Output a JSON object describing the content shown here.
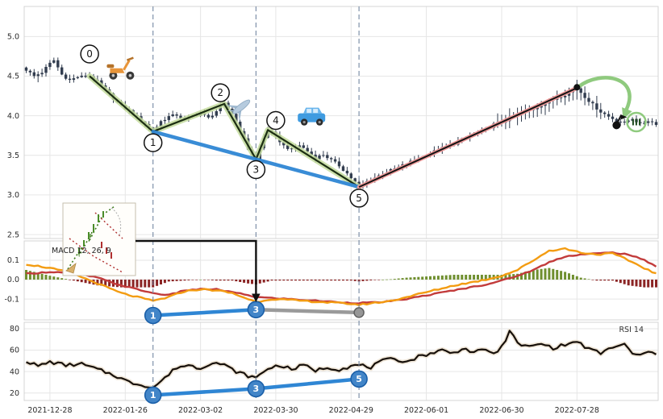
{
  "chart_data": {
    "type": "candlestick",
    "title": "",
    "axis": {
      "x_labels": [
        "2021-12-28",
        "2022-01-26",
        "2022-03-02",
        "2022-03-30",
        "2022-04-29",
        "2022-06-01",
        "2022-06-30",
        "2022-07-28"
      ],
      "x_label_days": [
        6,
        25,
        44,
        63,
        82,
        101,
        120,
        139
      ],
      "n_days": 160,
      "event_days": [
        32,
        58,
        84
      ]
    },
    "panels": {
      "price": {
        "ylim": [
          2.45,
          5.38
        ],
        "yticks": [
          {
            "v": 5.0,
            "label": "5.0"
          },
          {
            "v": 4.5,
            "label": "4.5"
          },
          {
            "v": 4.0,
            "label": "4.0"
          },
          {
            "v": 3.5,
            "label": "3.5"
          },
          {
            "v": 3.0,
            "label": "3.0"
          },
          {
            "v": 2.5,
            "label": "2.5"
          }
        ],
        "close_anchors": [
          [
            0,
            4.58
          ],
          [
            2,
            4.5
          ],
          [
            4,
            4.55
          ],
          [
            6,
            4.66
          ],
          [
            7,
            4.7
          ],
          [
            9,
            4.52
          ],
          [
            11,
            4.45
          ],
          [
            13,
            4.49
          ],
          [
            16,
            4.5
          ],
          [
            18,
            4.43
          ],
          [
            20,
            4.32
          ],
          [
            22,
            4.22
          ],
          [
            24,
            4.12
          ],
          [
            26,
            4.06
          ],
          [
            28,
            3.98
          ],
          [
            30,
            3.9
          ],
          [
            32,
            3.8
          ],
          [
            34,
            3.93
          ],
          [
            36,
            3.99
          ],
          [
            38,
            4.01
          ],
          [
            40,
            3.95
          ],
          [
            42,
            4.0
          ],
          [
            44,
            4.03
          ],
          [
            46,
            3.97
          ],
          [
            48,
            4.06
          ],
          [
            50,
            4.15
          ],
          [
            52,
            4.03
          ],
          [
            54,
            3.82
          ],
          [
            56,
            3.58
          ],
          [
            58,
            3.45
          ],
          [
            60,
            3.72
          ],
          [
            61,
            3.82
          ],
          [
            63,
            3.74
          ],
          [
            65,
            3.62
          ],
          [
            67,
            3.57
          ],
          [
            69,
            3.63
          ],
          [
            71,
            3.55
          ],
          [
            73,
            3.47
          ],
          [
            75,
            3.51
          ],
          [
            77,
            3.44
          ],
          [
            79,
            3.37
          ],
          [
            81,
            3.27
          ],
          [
            83,
            3.16
          ],
          [
            84,
            3.1
          ],
          [
            86,
            3.17
          ],
          [
            88,
            3.22
          ],
          [
            90,
            3.27
          ],
          [
            92,
            3.31
          ],
          [
            94,
            3.35
          ],
          [
            96,
            3.4
          ],
          [
            98,
            3.44
          ],
          [
            100,
            3.48
          ],
          [
            102,
            3.53
          ],
          [
            104,
            3.57
          ],
          [
            106,
            3.61
          ],
          [
            108,
            3.65
          ],
          [
            110,
            3.7
          ],
          [
            112,
            3.74
          ],
          [
            114,
            3.79
          ],
          [
            116,
            3.83
          ],
          [
            118,
            3.89
          ],
          [
            120,
            3.92
          ],
          [
            122,
            3.97
          ],
          [
            124,
            4.01
          ],
          [
            126,
            4.05
          ],
          [
            128,
            4.09
          ],
          [
            130,
            4.14
          ],
          [
            132,
            4.18
          ],
          [
            134,
            4.23
          ],
          [
            136,
            4.27
          ],
          [
            138,
            4.32
          ],
          [
            139,
            4.35
          ],
          [
            141,
            4.24
          ],
          [
            143,
            4.14
          ],
          [
            145,
            4.05
          ],
          [
            147,
            3.99
          ],
          [
            149,
            3.94
          ],
          [
            151,
            3.91
          ],
          [
            153,
            3.97
          ],
          [
            155,
            3.89
          ],
          [
            157,
            3.94
          ],
          [
            159,
            3.9
          ]
        ],
        "wave_points": [
          {
            "label": "0",
            "day": 16,
            "price": 4.5,
            "circle": [
              16,
              4.78
            ]
          },
          {
            "label": "1",
            "day": 32,
            "price": 3.8,
            "circle": [
              32,
              3.66
            ]
          },
          {
            "label": "2",
            "day": 50,
            "price": 4.15,
            "circle": [
              49,
              4.29
            ]
          },
          {
            "label": "3",
            "day": 58,
            "price": 3.45,
            "circle": [
              58,
              3.32
            ]
          },
          {
            "label": "4",
            "day": 61,
            "price": 3.82,
            "circle": [
              63,
              3.94
            ]
          },
          {
            "label": "5",
            "day": 84,
            "price": 3.1,
            "circle": [
              84,
              2.96
            ]
          }
        ],
        "support_line": {
          "from": [
            32,
            3.8
          ],
          "to": [
            84,
            3.1
          ]
        },
        "impulse_line": {
          "from": [
            84,
            3.1
          ],
          "to": [
            139,
            4.35
          ]
        },
        "projection": {
          "from": [
            139.5,
            4.37
          ],
          "to": [
            151.5,
            4.08
          ],
          "dot_points": [
            [
              139,
              4.36
            ],
            [
              149,
              3.88
            ]
          ],
          "target_point": [
            154,
            3.92
          ],
          "target_label": "III"
        },
        "icon_markers": [
          {
            "icon": "scooter",
            "day": 24,
            "price": 4.62
          },
          {
            "icon": "airplane",
            "day": 54,
            "price": 4.1
          },
          {
            "icon": "car",
            "day": 72,
            "price": 3.98
          }
        ]
      },
      "macd": {
        "label": "MACD 12, 26, 9",
        "ylim": [
          -0.208,
          0.2
        ],
        "yticks": [
          {
            "v": 0.1,
            "label": "0.1"
          },
          {
            "v": 0,
            "label": "0.0"
          },
          {
            "v": -0.1,
            "label": "-0.1"
          }
        ],
        "macd_anchors": [
          [
            0,
            0.08
          ],
          [
            6,
            0.06
          ],
          [
            12,
            0.03
          ],
          [
            18,
            -0.02
          ],
          [
            24,
            -0.07
          ],
          [
            30,
            -0.1
          ],
          [
            32,
            -0.11
          ],
          [
            36,
            -0.09
          ],
          [
            40,
            -0.06
          ],
          [
            44,
            -0.05
          ],
          [
            48,
            -0.055
          ],
          [
            52,
            -0.07
          ],
          [
            56,
            -0.1
          ],
          [
            58,
            -0.115
          ],
          [
            62,
            -0.1
          ],
          [
            66,
            -0.105
          ],
          [
            70,
            -0.11
          ],
          [
            74,
            -0.115
          ],
          [
            78,
            -0.12
          ],
          [
            82,
            -0.125
          ],
          [
            84,
            -0.13
          ],
          [
            88,
            -0.12
          ],
          [
            92,
            -0.11
          ],
          [
            96,
            -0.09
          ],
          [
            100,
            -0.07
          ],
          [
            104,
            -0.05
          ],
          [
            108,
            -0.03
          ],
          [
            112,
            -0.015
          ],
          [
            116,
            0
          ],
          [
            120,
            0.02
          ],
          [
            124,
            0.05
          ],
          [
            128,
            0.1
          ],
          [
            132,
            0.15
          ],
          [
            136,
            0.16
          ],
          [
            140,
            0.14
          ],
          [
            144,
            0.13
          ],
          [
            148,
            0.135
          ],
          [
            152,
            0.1
          ],
          [
            156,
            0.06
          ],
          [
            159,
            0.03
          ]
        ],
        "signal_anchors": [
          [
            0,
            0.03
          ],
          [
            6,
            0.04
          ],
          [
            12,
            0.035
          ],
          [
            18,
            0.01
          ],
          [
            24,
            -0.03
          ],
          [
            30,
            -0.06
          ],
          [
            32,
            -0.07
          ],
          [
            36,
            -0.08
          ],
          [
            40,
            -0.055
          ],
          [
            44,
            -0.05
          ],
          [
            48,
            -0.05
          ],
          [
            52,
            -0.065
          ],
          [
            56,
            -0.08
          ],
          [
            58,
            -0.09
          ],
          [
            62,
            -0.095
          ],
          [
            66,
            -0.1
          ],
          [
            70,
            -0.105
          ],
          [
            74,
            -0.11
          ],
          [
            78,
            -0.115
          ],
          [
            82,
            -0.12
          ],
          [
            84,
            -0.12
          ],
          [
            88,
            -0.118
          ],
          [
            92,
            -0.112
          ],
          [
            96,
            -0.1
          ],
          [
            100,
            -0.085
          ],
          [
            104,
            -0.07
          ],
          [
            108,
            -0.055
          ],
          [
            112,
            -0.04
          ],
          [
            116,
            -0.025
          ],
          [
            120,
            -0.005
          ],
          [
            124,
            0.02
          ],
          [
            128,
            0.05
          ],
          [
            132,
            0.09
          ],
          [
            136,
            0.12
          ],
          [
            140,
            0.13
          ],
          [
            144,
            0.135
          ],
          [
            148,
            0.14
          ],
          [
            152,
            0.13
          ],
          [
            156,
            0.1
          ],
          [
            159,
            0.07
          ]
        ],
        "markers": [
          {
            "label": "1",
            "day": 32,
            "value": -0.185
          },
          {
            "label": "3",
            "day": 58,
            "value": -0.155
          }
        ],
        "gray_segment": {
          "from": [
            58,
            -0.155
          ],
          "to": [
            84,
            -0.17
          ]
        }
      },
      "rsi": {
        "label": "RSI 14",
        "ylim": [
          13,
          86
        ],
        "yticks": [
          {
            "v": 80,
            "label": "80"
          },
          {
            "v": 60,
            "label": "60"
          },
          {
            "v": 40,
            "label": "40"
          },
          {
            "v": 20,
            "label": "20"
          }
        ],
        "rsi_anchors": [
          [
            0,
            50
          ],
          [
            3,
            45
          ],
          [
            6,
            49
          ],
          [
            10,
            46
          ],
          [
            14,
            47
          ],
          [
            18,
            42
          ],
          [
            22,
            37
          ],
          [
            26,
            30
          ],
          [
            30,
            27
          ],
          [
            32,
            25
          ],
          [
            35,
            34
          ],
          [
            38,
            44
          ],
          [
            41,
            46
          ],
          [
            44,
            43
          ],
          [
            47,
            49
          ],
          [
            50,
            46
          ],
          [
            53,
            40
          ],
          [
            56,
            36
          ],
          [
            58,
            34
          ],
          [
            61,
            43
          ],
          [
            64,
            46
          ],
          [
            67,
            42
          ],
          [
            70,
            46
          ],
          [
            73,
            41
          ],
          [
            76,
            44
          ],
          [
            79,
            42
          ],
          [
            82,
            45
          ],
          [
            84,
            46
          ],
          [
            87,
            44
          ],
          [
            90,
            50
          ],
          [
            93,
            52
          ],
          [
            96,
            49
          ],
          [
            99,
            54
          ],
          [
            102,
            57
          ],
          [
            105,
            60
          ],
          [
            108,
            57
          ],
          [
            110,
            62
          ],
          [
            113,
            58
          ],
          [
            116,
            60
          ],
          [
            119,
            57
          ],
          [
            121,
            70
          ],
          [
            122,
            79
          ],
          [
            124,
            66
          ],
          [
            127,
            63
          ],
          [
            130,
            66
          ],
          [
            133,
            62
          ],
          [
            136,
            65
          ],
          [
            139,
            68
          ],
          [
            142,
            61
          ],
          [
            145,
            57
          ],
          [
            148,
            63
          ],
          [
            151,
            65
          ],
          [
            153,
            57
          ],
          [
            155,
            55
          ],
          [
            157,
            58
          ],
          [
            159,
            57
          ]
        ],
        "markers": [
          {
            "label": "1",
            "day": 32,
            "value": 18
          },
          {
            "label": "3",
            "day": 58,
            "value": 24
          },
          {
            "label": "5",
            "day": 84,
            "value": 33
          }
        ]
      }
    },
    "colors": {
      "candle": "#323d4f",
      "support": "#2f86d4",
      "wave": "#1c2e12",
      "wave_glow": "#c4dc9e",
      "impulse_pink": "#ef9a9a",
      "impulse_dark": "#141414",
      "projection": "#8fca7e",
      "macd_line": "#f39c12",
      "signal_line": "#c23b3b",
      "hist_pos": "#6f8f2f",
      "hist_neg": "#8b2424",
      "rsi_line": "#17100a",
      "rsi_halo": "#efe6d8",
      "marker_fill": "#4285c8",
      "marker_stroke": "#1a5fa8",
      "event_line": "#7285a0",
      "gray": "#9a9a9a"
    }
  }
}
